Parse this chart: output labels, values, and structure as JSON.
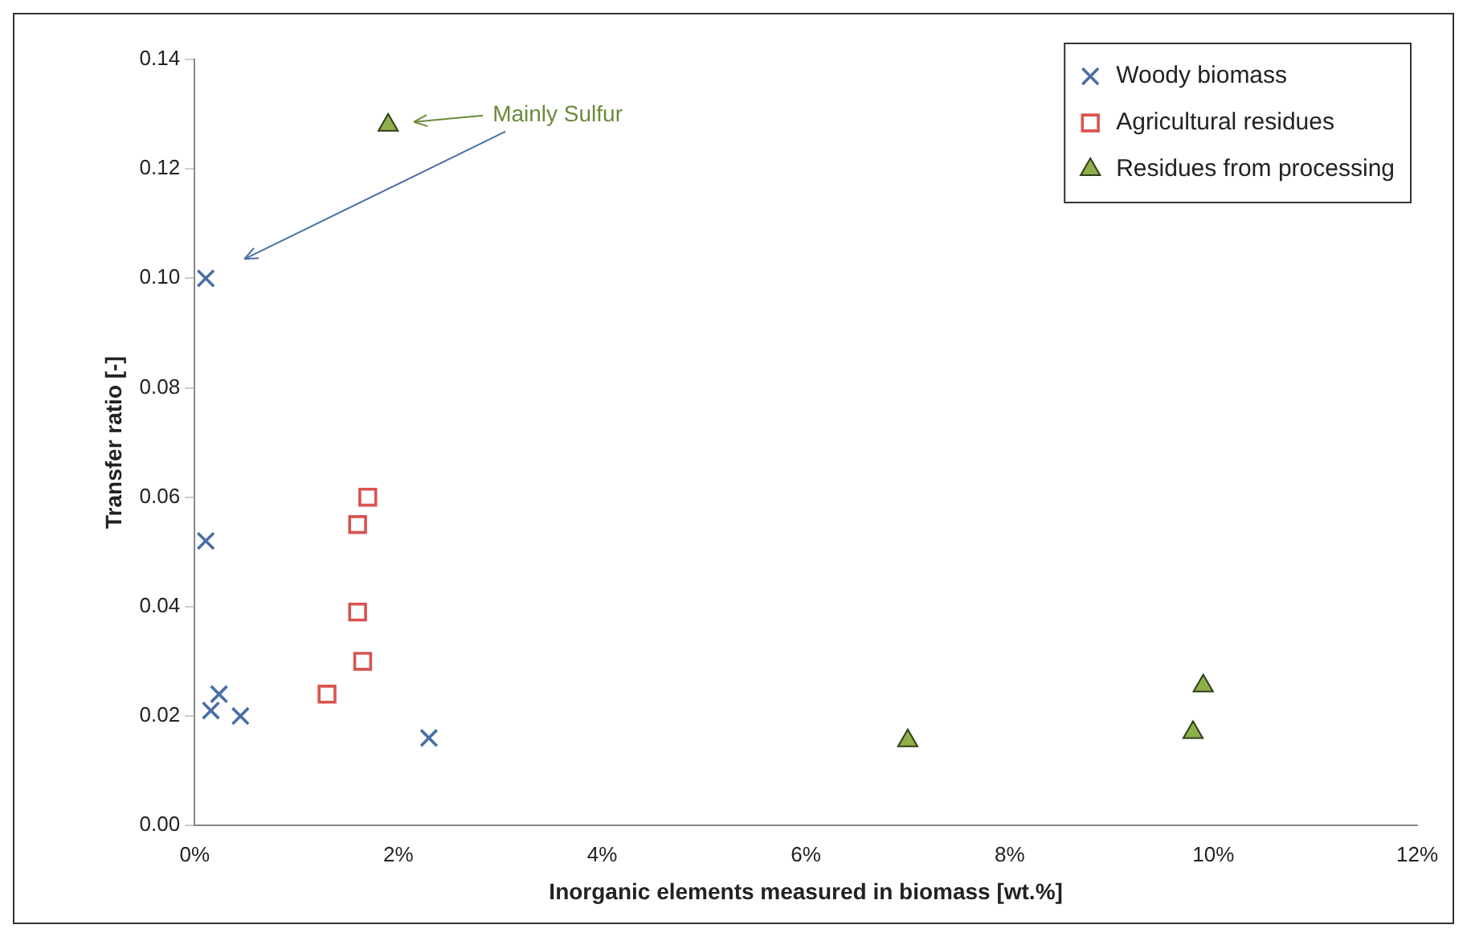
{
  "chart_data": {
    "type": "scatter",
    "xlabel": "Inorganic elements measured in biomass [wt.%]",
    "ylabel": "Transfer ratio [-]",
    "xlim": [
      0,
      12
    ],
    "xticks": [
      {
        "value": 0,
        "label": "0%"
      },
      {
        "value": 2,
        "label": "2%"
      },
      {
        "value": 4,
        "label": "4%"
      },
      {
        "value": 6,
        "label": "6%"
      },
      {
        "value": 8,
        "label": "8%"
      },
      {
        "value": 10,
        "label": "10%"
      },
      {
        "value": 12,
        "label": "12%"
      }
    ],
    "ylim": [
      0,
      0.14
    ],
    "yticks": [
      {
        "value": 0,
        "label": "0.00"
      },
      {
        "value": 0.02,
        "label": "0.02"
      },
      {
        "value": 0.04,
        "label": "0.04"
      },
      {
        "value": 0.06,
        "label": "0.06"
      },
      {
        "value": 0.08,
        "label": "0.08"
      },
      {
        "value": 0.1,
        "label": "0.10"
      },
      {
        "value": 0.12,
        "label": "0.12"
      },
      {
        "value": 0.14,
        "label": "0.14"
      }
    ],
    "legend": "top right",
    "annotations": [
      "Mainly Sulfur"
    ],
    "series": [
      {
        "name": "Woody biomass",
        "color": "#4a6fa5",
        "marker": "cross",
        "x": [
          0.11,
          0.11,
          0.24,
          0.16,
          0.45,
          2.3
        ],
        "values": [
          0.1,
          0.052,
          0.024,
          0.021,
          0.02,
          0.016
        ]
      },
      {
        "name": "Agricultural residues",
        "color": "#d9534f",
        "marker": "square",
        "x": [
          1.7,
          1.6,
          1.6,
          1.65,
          1.3
        ],
        "values": [
          0.06,
          0.055,
          0.039,
          0.03,
          0.024
        ]
      },
      {
        "name": "Residues from processing",
        "color": "#8db04a",
        "marker": "triangle",
        "x": [
          1.9,
          7.0,
          9.8,
          9.9
        ],
        "values": [
          0.128,
          0.0155,
          0.017,
          0.0255
        ]
      }
    ]
  }
}
